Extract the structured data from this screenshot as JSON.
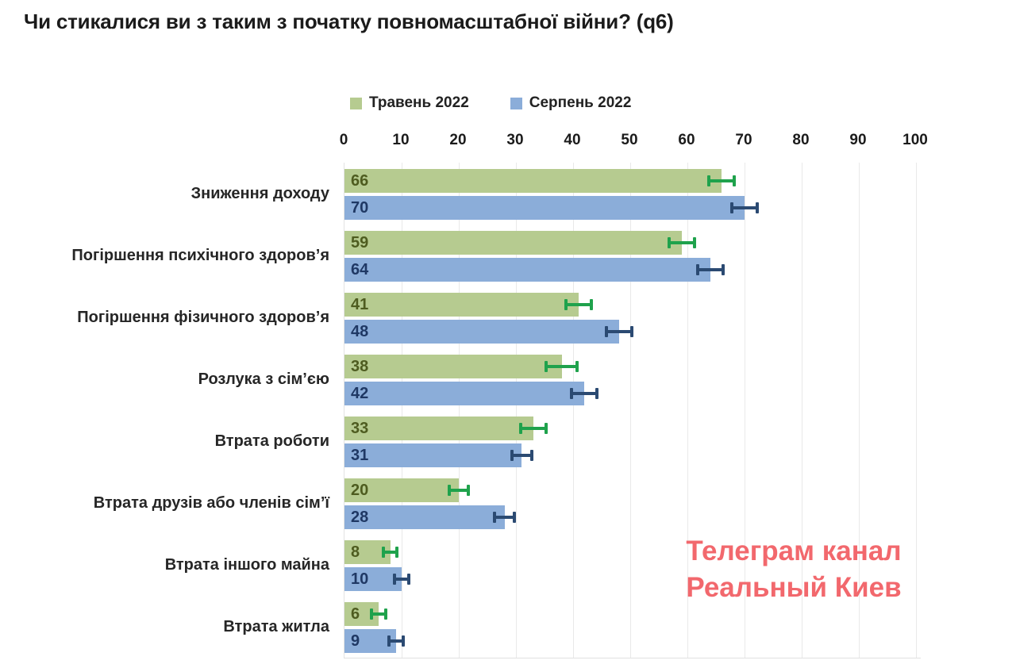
{
  "title": "Чи стикалися ви з таким з початку повномасштабної війни? (q6)",
  "watermark": {
    "line1": "Телеграм канал",
    "line2": "Реальный Киев",
    "color": "#f2686d"
  },
  "chart_data": {
    "type": "bar",
    "orientation": "horizontal",
    "title": "Чи стикалися ви з таким з початку повномасштабної війни? (q6)",
    "categories": [
      "Зниження доходу",
      "Погіршення психічного здоров’я",
      "Погіршення фізичного здоров’я",
      "Розлука з сім’єю",
      "Втрата роботи",
      "Втрата друзів або членів сім’ї",
      "Втрата іншого майна",
      "Втрата житла"
    ],
    "series": [
      {
        "name": "Травень 2022",
        "color": "#b6cb90",
        "label_color": "#4e5c20",
        "error_color": "#1fa24c",
        "values": [
          66,
          59,
          41,
          38,
          33,
          20,
          8,
          6
        ],
        "errors": [
          2.5,
          2.5,
          2.5,
          3,
          2.5,
          2,
          1.5,
          1.5
        ]
      },
      {
        "name": "Серпень 2022",
        "color": "#8badd9",
        "label_color": "#1f3864",
        "error_color": "#2b4a72",
        "values": [
          70,
          64,
          48,
          42,
          31,
          28,
          10,
          9
        ],
        "errors": [
          2.5,
          2.5,
          2.5,
          2.5,
          2,
          2,
          1.5,
          1.5
        ]
      }
    ],
    "x_axis": {
      "min": 0,
      "max": 100,
      "ticks": [
        0,
        10,
        20,
        30,
        40,
        50,
        60,
        70,
        80,
        90,
        100
      ]
    },
    "grid": true,
    "legend_position": "top",
    "error_bars": true
  }
}
